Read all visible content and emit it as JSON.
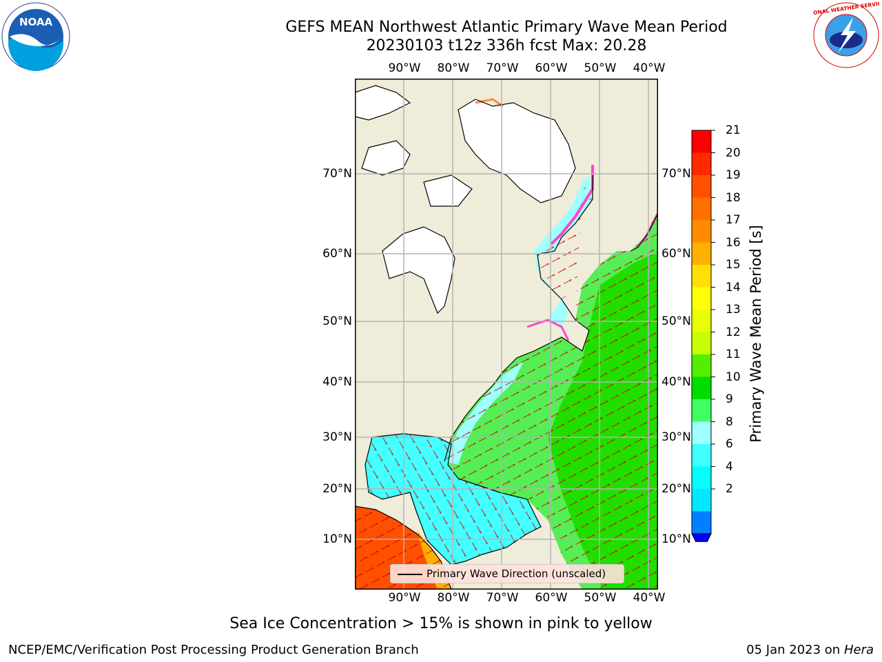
{
  "title_line1": "GEFS MEAN Northwest Atlantic Primary Wave Mean Period",
  "title_line2": "20230103 t12z 336h fcst   Max: 20.28",
  "lon_ticks": [
    "90°W",
    "80°W",
    "70°W",
    "60°W",
    "50°W",
    "40°W"
  ],
  "lat_ticks": [
    "70°N",
    "60°N",
    "50°N",
    "40°N",
    "30°N",
    "20°N",
    "10°N"
  ],
  "colorbar": {
    "label": "Primary Wave Mean Period [s]",
    "ticks": [
      "21",
      "20",
      "19",
      "18",
      "17",
      "16",
      "15",
      "14",
      "13",
      "12",
      "11",
      "10",
      "9",
      "8",
      "6",
      "4",
      "2"
    ],
    "colors": [
      "#ff0000",
      "#ff2a00",
      "#ff5000",
      "#ff7000",
      "#ff8c00",
      "#ffb000",
      "#ffe000",
      "#ffff00",
      "#e8ff00",
      "#c8ff00",
      "#55ee00",
      "#00dd00",
      "#40ff60",
      "#a0ffff",
      "#40ffff",
      "#00ffff",
      "#00e8ff",
      "#0080ff"
    ],
    "under_color": "#0000ff"
  },
  "legend_label": "Primary Wave Direction (unscaled)",
  "note": "Sea Ice Concentration > 15% is shown in pink to yellow",
  "credit": "NCEP/EMC/Verification Post Processing Product Generation Branch",
  "date": "05 Jan 2023",
  "date_on": "on",
  "machine": "Hera",
  "logos": {
    "left": "NOAA",
    "right": "NATIONAL WEATHER SERVICE"
  },
  "colors": {
    "land": "#efedd9",
    "ice": "#ffffff",
    "arrow": "#d00000",
    "grid": "#b4b4b4"
  }
}
